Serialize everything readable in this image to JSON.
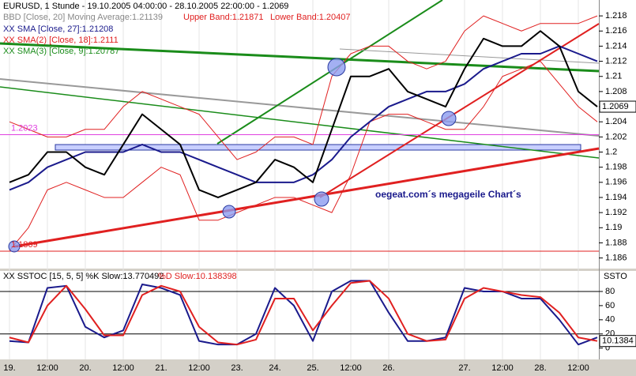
{
  "chart_data": [
    {
      "type": "line",
      "title": "EURUSD, 1 Stunde - 19.10.2005 04:00:00 - 28.10.2005 22:00:00 - 1.2069",
      "legend_lines": [
        "BBD [Close, 20] Moving Average:1.21139",
        "XX SMA(2) [Close, 18]:1.2111",
        "XX SMA(3) [Close, 9]:1.20787"
      ],
      "watermark": "oegeat.com´s megageile Chart´s",
      "last_label": "1.2069",
      "annotations": [
        {
          "value": 1.2023,
          "label": "1.2023",
          "color": "#e040e0"
        },
        {
          "value": 1.1869,
          "label": "1.1869",
          "color": "#e02020"
        }
      ],
      "categories": [
        "19.",
        null,
        "12:00",
        null,
        "20.",
        null,
        "12:00",
        null,
        "21.",
        null,
        "12:00",
        null,
        "23.",
        null,
        "24.",
        null,
        "25.",
        null,
        "12:00",
        null,
        "26.",
        null,
        null,
        null,
        "27.",
        null,
        "12:00",
        null,
        "28.",
        null,
        "12:00",
        null
      ],
      "series": [
        {
          "name": "Upper Band:1.21871",
          "color": "#e02020",
          "values": [
            1.204,
            1.203,
            1.202,
            1.202,
            1.203,
            1.203,
            1.206,
            1.208,
            1.207,
            1.206,
            1.205,
            1.202,
            1.199,
            1.2,
            1.202,
            1.202,
            1.201,
            1.21,
            1.213,
            1.214,
            1.214,
            1.212,
            1.211,
            1.212,
            1.216,
            1.218,
            1.217,
            1.216,
            1.217,
            1.217,
            1.217,
            1.218
          ]
        },
        {
          "name": "Lower Band:1.20407",
          "color": "#e02020",
          "values": [
            1.187,
            1.19,
            1.195,
            1.196,
            1.195,
            1.194,
            1.194,
            1.196,
            1.198,
            1.197,
            1.191,
            1.191,
            1.192,
            1.193,
            1.194,
            1.194,
            1.193,
            1.192,
            1.197,
            1.204,
            1.205,
            1.205,
            1.204,
            1.203,
            1.203,
            1.206,
            1.21,
            1.211,
            1.212,
            1.209,
            1.206,
            1.204
          ]
        },
        {
          "name": "XX SMA [Close, 27]:1.21208",
          "color": "#1a1a8c",
          "values": [
            1.195,
            1.196,
            1.198,
            1.199,
            1.2,
            1.2,
            1.2,
            1.201,
            1.2,
            1.2,
            1.199,
            1.198,
            1.197,
            1.196,
            1.196,
            1.196,
            1.197,
            1.199,
            1.202,
            1.204,
            1.206,
            1.207,
            1.208,
            1.208,
            1.209,
            1.211,
            1.212,
            1.213,
            1.213,
            1.214,
            1.213,
            1.212
          ]
        },
        {
          "name": "Close",
          "color": "#000000",
          "values": [
            1.196,
            1.197,
            1.2,
            1.2,
            1.198,
            1.197,
            1.201,
            1.205,
            1.203,
            1.201,
            1.195,
            1.194,
            1.195,
            1.196,
            1.199,
            1.198,
            1.196,
            1.203,
            1.21,
            1.21,
            1.211,
            1.208,
            1.207,
            1.206,
            1.211,
            1.215,
            1.214,
            1.214,
            1.216,
            1.214,
            1.208,
            1.206
          ]
        }
      ],
      "ylim": [
        1.1846,
        1.2201
      ],
      "yticks": [
        1.186,
        1.188,
        1.19,
        1.192,
        1.194,
        1.196,
        1.198,
        1.2,
        1.202,
        1.204,
        1.206,
        1.208,
        1.21,
        1.212,
        1.214,
        1.216,
        1.218
      ]
    },
    {
      "type": "line",
      "axis_title": "SSTO",
      "last_label": "10.1384",
      "series": [
        {
          "name": "XX SSTOC [15, 5, 5] %K Slow:13.770492",
          "color": "#1a1a8c",
          "values": [
            10,
            8,
            85,
            88,
            30,
            15,
            25,
            90,
            85,
            75,
            10,
            5,
            5,
            20,
            85,
            60,
            10,
            80,
            95,
            95,
            50,
            10,
            10,
            15,
            85,
            80,
            80,
            70,
            70,
            40,
            5,
            15
          ]
        },
        {
          "name": "%D Slow:10.138398",
          "color": "#e02020",
          "values": [
            15,
            8,
            60,
            88,
            55,
            18,
            18,
            75,
            88,
            80,
            30,
            8,
            5,
            12,
            70,
            70,
            25,
            60,
            92,
            95,
            70,
            20,
            10,
            12,
            70,
            85,
            80,
            75,
            72,
            50,
            15,
            10
          ]
        }
      ],
      "levels": [
        80,
        20
      ],
      "ylim": [
        -16,
        109
      ],
      "yticks": [
        0,
        20,
        40,
        60,
        80
      ]
    }
  ]
}
